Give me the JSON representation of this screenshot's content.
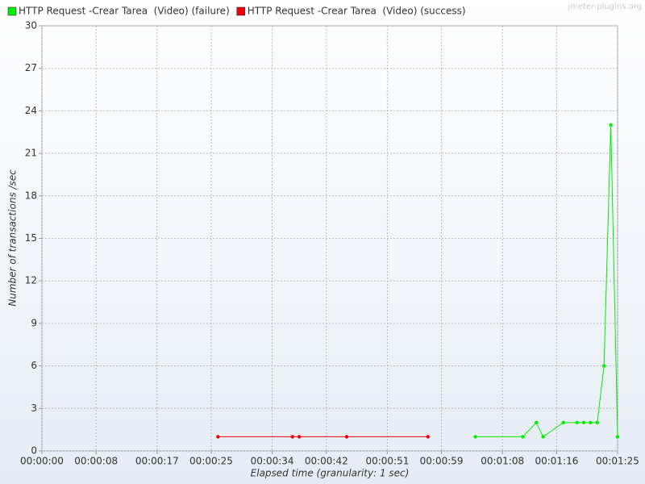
{
  "chart_data": {
    "type": "line",
    "watermark": "jmeter-plugins.org",
    "xlabel": "Elapsed time (granularity: 1 sec)",
    "ylabel": "Number of transactions /sec",
    "xlim": [
      0,
      85
    ],
    "ylim": [
      0,
      30
    ],
    "xticks": [
      {
        "value": 0,
        "label": "00:00:00"
      },
      {
        "value": 8,
        "label": "00:00:08"
      },
      {
        "value": 17,
        "label": "00:00:17"
      },
      {
        "value": 25,
        "label": "00:00:25"
      },
      {
        "value": 34,
        "label": "00:00:34"
      },
      {
        "value": 42,
        "label": "00:00:42"
      },
      {
        "value": 51,
        "label": "00:00:51"
      },
      {
        "value": 59,
        "label": "00:00:59"
      },
      {
        "value": 68,
        "label": "00:01:08"
      },
      {
        "value": 76,
        "label": "00:01:16"
      },
      {
        "value": 85,
        "label": "00:01:25"
      }
    ],
    "yticks": [
      0,
      3,
      6,
      9,
      12,
      15,
      18,
      21,
      24,
      27,
      30
    ],
    "grid": true,
    "series": [
      {
        "name": "HTTP Request -Crear Tarea  (Video) (failure)",
        "color": "#00ee00",
        "x": [
          64,
          71,
          73,
          74,
          77,
          79,
          80,
          81,
          82,
          83,
          84,
          85
        ],
        "values": [
          1,
          1,
          2,
          1,
          2,
          2,
          2,
          2,
          2,
          6,
          23,
          1
        ]
      },
      {
        "name": "HTTP Request -Crear Tarea  (Video) (success)",
        "color": "#ee0000",
        "x": [
          26,
          37,
          38,
          45,
          57
        ],
        "values": [
          1,
          1,
          1,
          1,
          1
        ]
      }
    ]
  }
}
